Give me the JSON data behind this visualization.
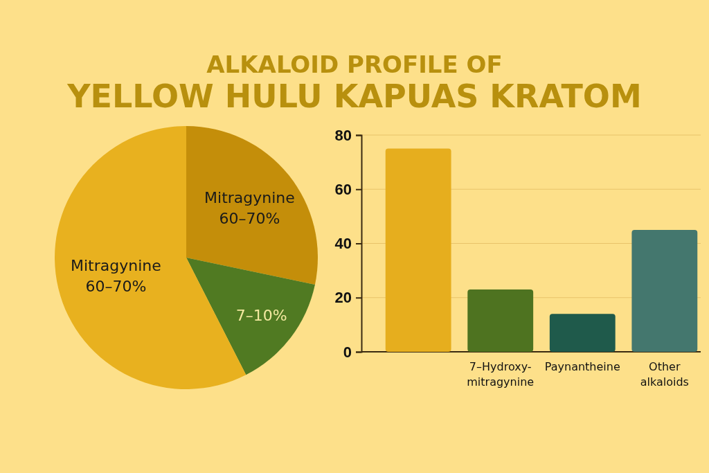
{
  "chart_data": [
    {
      "type": "pie",
      "title": "ALKALOID PROFILE OF\nYELLOW HULU KAPUAS KRATOM",
      "categories": [
        "Mitragynine\n60–70%",
        "7–10%",
        "Mitragynine\n60–70%"
      ],
      "values": [
        28.3,
        14.2,
        57.5
      ],
      "colors": [
        "#c48e0a",
        "#507a22",
        "#e8b11f"
      ]
    },
    {
      "type": "bar",
      "categories": [
        null,
        "7–Hydroxy-\nmitragynine",
        "Paynantheine",
        "Other\nalkaloids"
      ],
      "values": [
        75,
        23,
        14,
        45
      ],
      "colors": [
        "#e6ae1e",
        "#4e7320",
        "#1f5a4b",
        "#44776e"
      ],
      "ylim": [
        0,
        80
      ],
      "yticks": [
        0,
        20,
        40,
        60,
        80
      ],
      "grid": "y"
    }
  ]
}
